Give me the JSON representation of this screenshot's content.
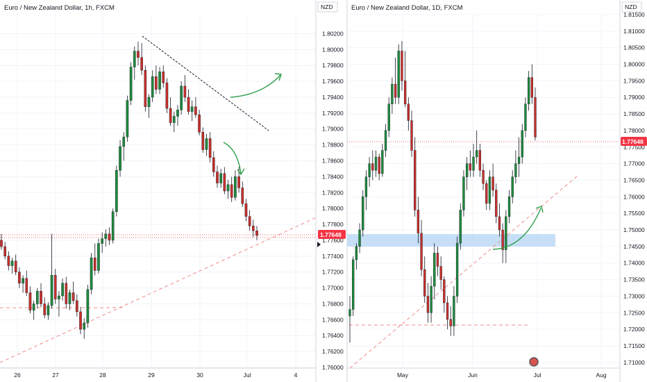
{
  "colors": {
    "up": "#1e8a3c",
    "down": "#c9302c",
    "price_line": "#e53935",
    "trend_dashed": "#f28b8b",
    "resistance": "#131722",
    "arrow": "#2e9e48",
    "zone": "#bcd9f5",
    "price_tag_bg": "#f23645"
  },
  "left_panel": {
    "title": "Euro / New Zealand Dollar, 1h, FXCM",
    "currency": "NZD",
    "price_tag": "1.77648",
    "y_ticks": [
      "1.80200",
      "1.80000",
      "1.79800",
      "1.79600",
      "1.79400",
      "1.79200",
      "1.79000",
      "1.78800",
      "1.78600",
      "1.78400",
      "1.78200",
      "1.78000",
      "1.77800",
      "1.77600",
      "1.77400",
      "1.77200",
      "1.77000",
      "1.76800",
      "1.76600",
      "1.76400",
      "1.76200",
      "1.76000"
    ],
    "x_ticks": [
      "26",
      "27",
      "28",
      "29",
      "30",
      "Jul",
      "4"
    ]
  },
  "right_panel": {
    "title": "Euro / New Zealand Dollar, 1D, FXCM",
    "currency": "NZD",
    "price_tag": "1.77648",
    "y_ticks": [
      "1.81500",
      "1.81000",
      "1.80500",
      "1.80000",
      "1.79500",
      "1.79000",
      "1.78500",
      "1.78000",
      "1.77500",
      "1.77000",
      "1.76500",
      "1.76000",
      "1.75500",
      "1.75000",
      "1.74500",
      "1.74000",
      "1.73500",
      "1.73000",
      "1.72500",
      "1.72000",
      "1.71500",
      "1.71000"
    ],
    "x_ticks": [
      "May",
      "Jun",
      "Jul",
      "Aug"
    ]
  },
  "chart_data": [
    {
      "type": "candlestick",
      "title": "Euro / New Zealand Dollar, 1h, FXCM",
      "ylabel": "NZD",
      "ylim": [
        1.76,
        1.803
      ],
      "x_ticks": [
        "26",
        "27",
        "28",
        "29",
        "30",
        "Jul",
        "4"
      ],
      "last_price": 1.77648,
      "candles": [
        [
          1.776,
          1.7768,
          1.7748,
          1.7752
        ],
        [
          1.7752,
          1.7758,
          1.7736,
          1.774
        ],
        [
          1.774,
          1.7746,
          1.7722,
          1.7728
        ],
        [
          1.7728,
          1.7738,
          1.7718,
          1.7734
        ],
        [
          1.7734,
          1.7742,
          1.7716,
          1.772
        ],
        [
          1.772,
          1.7726,
          1.77,
          1.7706
        ],
        [
          1.7706,
          1.7716,
          1.7694,
          1.7712
        ],
        [
          1.7712,
          1.7722,
          1.769,
          1.7694
        ],
        [
          1.7694,
          1.7702,
          1.7668,
          1.7672
        ],
        [
          1.7672,
          1.7684,
          1.766,
          1.768
        ],
        [
          1.768,
          1.77,
          1.7674,
          1.7696
        ],
        [
          1.7696,
          1.7706,
          1.7676,
          1.768
        ],
        [
          1.768,
          1.7688,
          1.7662,
          1.7666
        ],
        [
          1.7666,
          1.7682,
          1.766,
          1.7678
        ],
        [
          1.7678,
          1.7768,
          1.7674,
          1.7716
        ],
        [
          1.7716,
          1.7724,
          1.768,
          1.7686
        ],
        [
          1.7686,
          1.7696,
          1.7664,
          1.769
        ],
        [
          1.769,
          1.7712,
          1.7684,
          1.7706
        ],
        [
          1.7706,
          1.7714,
          1.7674,
          1.768
        ],
        [
          1.768,
          1.7698,
          1.7672,
          1.7694
        ],
        [
          1.7694,
          1.7708,
          1.768,
          1.7684
        ],
        [
          1.7684,
          1.7692,
          1.7664,
          1.767
        ],
        [
          1.767,
          1.7676,
          1.7642,
          1.7648
        ],
        [
          1.7648,
          1.7662,
          1.7636,
          1.7656
        ],
        [
          1.7656,
          1.7704,
          1.765,
          1.7698
        ],
        [
          1.7698,
          1.7744,
          1.7692,
          1.7738
        ],
        [
          1.7738,
          1.7756,
          1.7716,
          1.7722
        ],
        [
          1.7722,
          1.7762,
          1.7718,
          1.7756
        ],
        [
          1.7756,
          1.777,
          1.7744,
          1.7762
        ],
        [
          1.7762,
          1.7774,
          1.7752,
          1.7768
        ],
        [
          1.7768,
          1.7776,
          1.7754,
          1.776
        ],
        [
          1.776,
          1.78,
          1.7756,
          1.7796
        ],
        [
          1.7796,
          1.7854,
          1.779,
          1.7848
        ],
        [
          1.7848,
          1.7886,
          1.784,
          1.7878
        ],
        [
          1.7878,
          1.7896,
          1.786,
          1.789
        ],
        [
          1.789,
          1.7942,
          1.7884,
          1.7936
        ],
        [
          1.7936,
          1.7984,
          1.793,
          1.7978
        ],
        [
          1.7978,
          1.8004,
          1.7962,
          1.7998
        ],
        [
          1.7998,
          1.801,
          1.798,
          1.799
        ],
        [
          1.799,
          1.8008,
          1.7968,
          1.7974
        ],
        [
          1.7974,
          1.798,
          1.7922,
          1.7928
        ],
        [
          1.7928,
          1.7944,
          1.7914,
          1.794
        ],
        [
          1.794,
          1.7974,
          1.7934,
          1.7966
        ],
        [
          1.7966,
          1.798,
          1.7944,
          1.795
        ],
        [
          1.795,
          1.7978,
          1.7944,
          1.7972
        ],
        [
          1.7972,
          1.798,
          1.7952,
          1.7958
        ],
        [
          1.7958,
          1.7964,
          1.792,
          1.7926
        ],
        [
          1.7926,
          1.794,
          1.7904,
          1.7908
        ],
        [
          1.7908,
          1.7922,
          1.7896,
          1.7916
        ],
        [
          1.7916,
          1.793,
          1.7904,
          1.7924
        ],
        [
          1.7924,
          1.796,
          1.7918,
          1.7954
        ],
        [
          1.7954,
          1.7968,
          1.7934,
          1.794
        ],
        [
          1.794,
          1.795,
          1.7918,
          1.7922
        ],
        [
          1.7922,
          1.7936,
          1.791,
          1.7928
        ],
        [
          1.7928,
          1.794,
          1.7914,
          1.7918
        ],
        [
          1.7918,
          1.7924,
          1.7892,
          1.7896
        ],
        [
          1.7896,
          1.7902,
          1.787,
          1.7874
        ],
        [
          1.7874,
          1.7894,
          1.7866,
          1.7888
        ],
        [
          1.7888,
          1.7896,
          1.7858,
          1.7864
        ],
        [
          1.7864,
          1.7872,
          1.784,
          1.7846
        ],
        [
          1.7846,
          1.7854,
          1.7826,
          1.7832
        ],
        [
          1.7832,
          1.785,
          1.7826,
          1.7844
        ],
        [
          1.7844,
          1.7852,
          1.7818,
          1.7822
        ],
        [
          1.7822,
          1.7836,
          1.7812,
          1.783
        ],
        [
          1.783,
          1.784,
          1.7808,
          1.7814
        ],
        [
          1.7814,
          1.7848,
          1.781,
          1.784
        ],
        [
          1.784,
          1.7852,
          1.782,
          1.7826
        ],
        [
          1.7826,
          1.7834,
          1.7802,
          1.7806
        ],
        [
          1.7806,
          1.7812,
          1.7784,
          1.779
        ],
        [
          1.779,
          1.7798,
          1.7772,
          1.7778
        ],
        [
          1.7778,
          1.7786,
          1.7764,
          1.7772
        ],
        [
          1.7772,
          1.7778,
          1.776,
          1.7766
        ]
      ],
      "annotations": [
        "falling resistance line",
        "rising dashed trendline",
        "dashed support 1.76700",
        "green arrow down",
        "green arrow up"
      ]
    },
    {
      "type": "candlestick",
      "title": "Euro / New Zealand Dollar, 1D, FXCM",
      "ylabel": "NZD",
      "ylim": [
        1.7085,
        1.8175
      ],
      "x_ticks": [
        "May",
        "Jun",
        "Jul",
        "Aug"
      ],
      "last_price": 1.77648,
      "candles": [
        [
          1.724,
          1.73,
          1.716,
          1.726
        ],
        [
          1.726,
          1.742,
          1.724,
          1.741
        ],
        [
          1.741,
          1.746,
          1.738,
          1.745
        ],
        [
          1.745,
          1.752,
          1.743,
          1.75
        ],
        [
          1.75,
          1.762,
          1.748,
          1.76
        ],
        [
          1.76,
          1.768,
          1.756,
          1.766
        ],
        [
          1.766,
          1.772,
          1.763,
          1.77
        ],
        [
          1.77,
          1.774,
          1.765,
          1.768
        ],
        [
          1.768,
          1.774,
          1.766,
          1.772
        ],
        [
          1.772,
          1.773,
          1.765,
          1.767
        ],
        [
          1.767,
          1.776,
          1.766,
          1.774
        ],
        [
          1.774,
          1.782,
          1.772,
          1.78
        ],
        [
          1.78,
          1.79,
          1.778,
          1.788
        ],
        [
          1.788,
          1.796,
          1.785,
          1.794
        ],
        [
          1.794,
          1.802,
          1.788,
          1.79
        ],
        [
          1.79,
          1.806,
          1.788,
          1.804
        ],
        [
          1.804,
          1.807,
          1.792,
          1.795
        ],
        [
          1.795,
          1.804,
          1.787,
          1.788
        ],
        [
          1.788,
          1.79,
          1.78,
          1.783
        ],
        [
          1.783,
          1.786,
          1.772,
          1.774
        ],
        [
          1.774,
          1.778,
          1.754,
          1.756
        ],
        [
          1.756,
          1.76,
          1.746,
          1.749
        ],
        [
          1.749,
          1.753,
          1.736,
          1.738
        ],
        [
          1.738,
          1.742,
          1.728,
          1.73
        ],
        [
          1.73,
          1.734,
          1.722,
          1.725
        ],
        [
          1.725,
          1.736,
          1.722,
          1.733
        ],
        [
          1.733,
          1.746,
          1.729,
          1.743
        ],
        [
          1.743,
          1.745,
          1.736,
          1.739
        ],
        [
          1.739,
          1.742,
          1.732,
          1.735
        ],
        [
          1.735,
          1.736,
          1.725,
          1.728
        ],
        [
          1.728,
          1.73,
          1.72,
          1.723
        ],
        [
          1.723,
          1.727,
          1.718,
          1.721
        ],
        [
          1.721,
          1.733,
          1.718,
          1.73
        ],
        [
          1.73,
          1.748,
          1.728,
          1.746
        ],
        [
          1.746,
          1.758,
          1.744,
          1.756
        ],
        [
          1.756,
          1.768,
          1.754,
          1.766
        ],
        [
          1.766,
          1.772,
          1.762,
          1.77
        ],
        [
          1.77,
          1.774,
          1.766,
          1.768
        ],
        [
          1.768,
          1.776,
          1.766,
          1.772
        ],
        [
          1.772,
          1.78,
          1.77,
          1.774
        ],
        [
          1.774,
          1.776,
          1.766,
          1.768
        ],
        [
          1.768,
          1.77,
          1.762,
          1.764
        ],
        [
          1.764,
          1.765,
          1.756,
          1.758
        ],
        [
          1.758,
          1.768,
          1.756,
          1.766
        ],
        [
          1.766,
          1.77,
          1.76,
          1.762
        ],
        [
          1.762,
          1.764,
          1.752,
          1.754
        ],
        [
          1.754,
          1.758,
          1.748,
          1.75
        ],
        [
          1.75,
          1.752,
          1.74,
          1.744
        ],
        [
          1.744,
          1.756,
          1.74,
          1.754
        ],
        [
          1.754,
          1.762,
          1.752,
          1.76
        ],
        [
          1.76,
          1.768,
          1.758,
          1.766
        ],
        [
          1.766,
          1.774,
          1.764,
          1.77
        ],
        [
          1.77,
          1.778,
          1.766,
          1.772
        ],
        [
          1.772,
          1.782,
          1.77,
          1.78
        ],
        [
          1.78,
          1.79,
          1.778,
          1.788
        ],
        [
          1.788,
          1.798,
          1.786,
          1.796
        ],
        [
          1.796,
          1.8,
          1.788,
          1.79
        ],
        [
          1.79,
          1.793,
          1.777,
          1.778
        ]
      ],
      "annotations": [
        "support zone 1.74500-1.74800",
        "rising dashed trendline",
        "dashed support 1.72100",
        "green arrow up"
      ]
    }
  ]
}
